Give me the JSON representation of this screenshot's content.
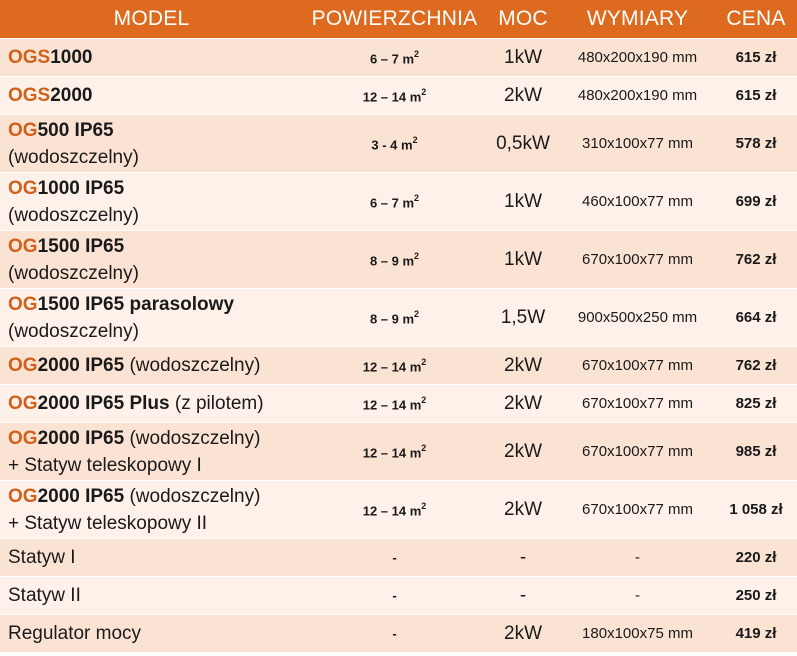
{
  "headers": {
    "model": "MODEL",
    "area": "POWIERZCHNIA",
    "power": "MOC",
    "dims": "WYMIARY",
    "price": "CENA"
  },
  "rows": [
    {
      "prefix": "OGS",
      "name_bold": "1000",
      "name_rest": "",
      "line2": "",
      "area": "6 – 7 m",
      "area_sup": "2",
      "power": "1kW",
      "dims": "480x200x190 mm",
      "price": "615 zł"
    },
    {
      "prefix": "OGS",
      "name_bold": "2000",
      "name_rest": "",
      "line2": "",
      "area": "12 – 14 m",
      "area_sup": "2",
      "power": "2kW",
      "dims": "480x200x190 mm",
      "price": "615 zł"
    },
    {
      "prefix": "OG",
      "name_bold": "500 IP65",
      "name_rest": "",
      "line2": "(wodoszczelny)",
      "area": "3 - 4 m",
      "area_sup": "2",
      "power": "0,5kW",
      "dims": "310x100x77 mm",
      "price": "578 zł"
    },
    {
      "prefix": "OG",
      "name_bold": "1000 IP65",
      "name_rest": "",
      "line2": "(wodoszczelny)",
      "area": "6 – 7 m",
      "area_sup": "2",
      "power": "1kW",
      "dims": "460x100x77 mm",
      "price": "699 zł"
    },
    {
      "prefix": "OG",
      "name_bold": "1500 IP65",
      "name_rest": "",
      "line2": "(wodoszczelny)",
      "area": "8 – 9 m",
      "area_sup": "2",
      "power": "1kW",
      "dims": "670x100x77 mm",
      "price": "762 zł"
    },
    {
      "prefix": "OG",
      "name_bold": "1500 IP65 parasolowy",
      "name_rest": "",
      "line2": " (wodoszczelny)",
      "area": "8 – 9 m",
      "area_sup": "2",
      "power": "1,5W",
      "dims": "900x500x250 mm",
      "price": "664 zł"
    },
    {
      "prefix": "OG",
      "name_bold": "2000 IP65",
      "name_rest": " (wodoszczelny)",
      "line2": "",
      "area": "12 – 14 m",
      "area_sup": "2",
      "power": "2kW",
      "dims": "670x100x77 mm",
      "price": "762 zł"
    },
    {
      "prefix": "OG",
      "name_bold": "2000 IP65 Plus",
      "name_rest": " (z pilotem)",
      "line2": "",
      "area": "12 – 14 m",
      "area_sup": "2",
      "power": "2kW",
      "dims": "670x100x77 mm",
      "price": "825 zł"
    },
    {
      "prefix": "OG",
      "name_bold": "2000 IP65",
      "name_rest": " (wodoszczelny)",
      "line2": "+ Statyw teleskopowy I",
      "area": "12 – 14 m",
      "area_sup": "2",
      "power": "2kW",
      "dims": "670x100x77 mm",
      "price": "985 zł"
    },
    {
      "prefix": "OG",
      "name_bold": "2000 IP65",
      "name_rest": " (wodoszczelny)",
      "line2": "+ Statyw teleskopowy II",
      "area": "12 – 14 m",
      "area_sup": "2",
      "power": "2kW",
      "dims": "670x100x77 mm",
      "price": "1 058 zł"
    },
    {
      "prefix": "",
      "name_bold": "",
      "name_rest": "Statyw I",
      "line2": "",
      "area": "-",
      "area_sup": "",
      "power": "-",
      "dims": "-",
      "price": "220 zł"
    },
    {
      "prefix": "",
      "name_bold": "",
      "name_rest": "Statyw II",
      "line2": "",
      "area": "-",
      "area_sup": "",
      "power": "-",
      "dims": "-",
      "price": "250 zł"
    },
    {
      "prefix": "",
      "name_bold": "",
      "name_rest": "Regulator mocy",
      "line2": "",
      "area": "-",
      "area_sup": "",
      "power": "2kW",
      "dims": "180x100x75 mm",
      "price": "419 zł"
    }
  ]
}
